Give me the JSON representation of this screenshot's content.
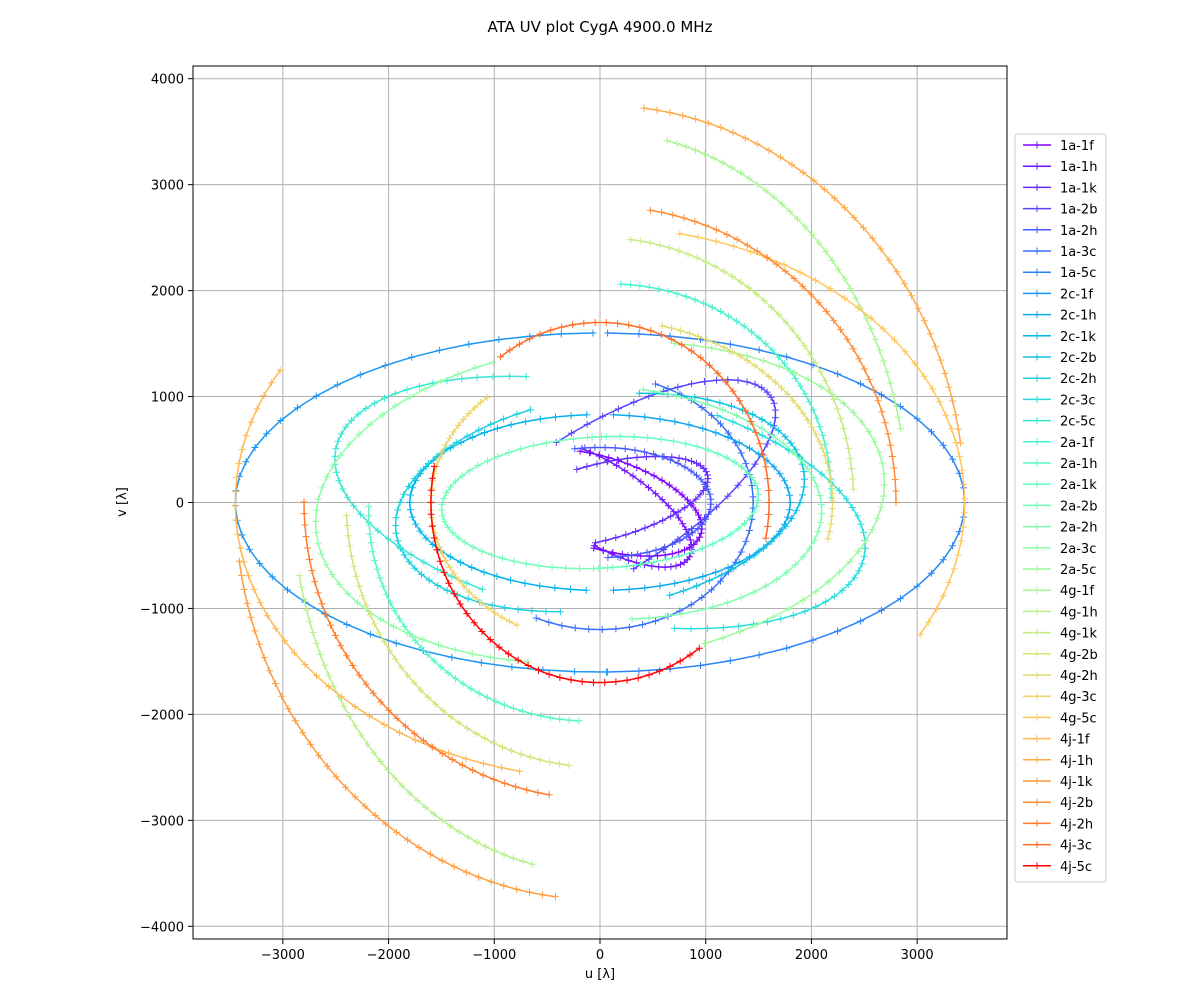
{
  "chart_data": {
    "type": "line",
    "title": "ATA UV plot CygA 4900.0 MHz",
    "xlabel": "u [λ]",
    "ylabel": "v [λ]",
    "xlim": [
      -3850,
      3850
    ],
    "ylim": [
      -4120,
      4120
    ],
    "xticks": [
      -3000,
      -2000,
      -1000,
      0,
      1000,
      2000,
      3000
    ],
    "yticks": [
      -4000,
      -3000,
      -2000,
      -1000,
      0,
      1000,
      2000,
      3000,
      4000
    ],
    "xtick_labels": [
      "−3000",
      "−2000",
      "−1000",
      "0",
      "1000",
      "2000",
      "3000"
    ],
    "ytick_labels": [
      "−4000",
      "−3000",
      "−2000",
      "−1000",
      "0",
      "1000",
      "2000",
      "3000",
      "4000"
    ],
    "grid": true,
    "legend_position": "right",
    "marker": "+",
    "series": [
      {
        "name": "1a-1f",
        "color": "#8000ff",
        "a": 1000,
        "b": 430,
        "phi": -0.3,
        "t0": -1.5,
        "t1": 1.9,
        "x0": 0,
        "y0": 0
      },
      {
        "name": "1a-1h",
        "color": "#7216ff",
        "a": 990,
        "b": 380,
        "phi": -0.55,
        "t0": -1.4,
        "t1": 2.0,
        "x0": 0,
        "y0": 0
      },
      {
        "name": "1a-1k",
        "color": "#632dff",
        "a": 1050,
        "b": 360,
        "phi": 0.25,
        "t0": -1.7,
        "t1": 1.7,
        "x0": 0,
        "y0": 0
      },
      {
        "name": "1a-2b",
        "color": "#5543fe",
        "a": 1900,
        "b": 700,
        "phi": 0.55,
        "t0": -1.6,
        "t1": 1.6,
        "x0": 0,
        "y0": 0
      },
      {
        "name": "1a-2h",
        "color": "#4759fc",
        "a": 1050,
        "b": 520,
        "phi": 0.0,
        "t0": -1.5,
        "t1": 1.8,
        "x0": 0,
        "y0": 0
      },
      {
        "name": "1a-3c",
        "color": "#396ffa",
        "a": 1450,
        "b": 1200,
        "phi": 0.0,
        "t0": -2.0,
        "t1": 1.2,
        "x0": 0,
        "y0": 0
      },
      {
        "name": "1a-5c",
        "color": "#2a84f7",
        "a": 3450,
        "b": 1600,
        "phi": 0.0,
        "t0": -1.55,
        "t1": 1.55,
        "x0": 0,
        "y0": 0
      },
      {
        "name": "2c-1f",
        "color": "#1c96f3",
        "a": 3450,
        "b": 1600,
        "phi": 0.0,
        "t0": 1.59,
        "t1": 4.73,
        "x0": 0,
        "y0": 0
      },
      {
        "name": "2c-1h",
        "color": "#0ea8ef",
        "a": 1800,
        "b": 830,
        "phi": 0.0,
        "t0": -1.5,
        "t1": 1.5,
        "x0": 0,
        "y0": 0
      },
      {
        "name": "2c-1k",
        "color": "#00b5eb",
        "a": 1800,
        "b": 830,
        "phi": 0.0,
        "t0": 1.64,
        "t1": 4.64,
        "x0": 0,
        "y0": 0
      },
      {
        "name": "2c-2b",
        "color": "#0dc1e5",
        "a": 1950,
        "b": 1000,
        "phi": 0.15,
        "t0": -1.3,
        "t1": 1.3,
        "x0": 0,
        "y0": 0
      },
      {
        "name": "2c-2h",
        "color": "#1bcee0",
        "a": 1950,
        "b": 1000,
        "phi": 0.15,
        "t0": 1.84,
        "t1": 4.44,
        "x0": 0,
        "y0": 0
      },
      {
        "name": "2c-3c",
        "color": "#2adddd",
        "a": 2550,
        "b": 1100,
        "phi": -0.2,
        "t0": -1.2,
        "t1": 1.2,
        "x0": 0,
        "y0": 0
      },
      {
        "name": "2c-5c",
        "color": "#3ae7d5",
        "a": 2550,
        "b": 1100,
        "phi": -0.2,
        "t0": 1.94,
        "t1": 4.34,
        "x0": 0,
        "y0": 0
      },
      {
        "name": "2a-1f",
        "color": "#48f2ce",
        "a": 2200,
        "b": 2050,
        "phi": 0.3,
        "t0": -0.3,
        "t1": 1.2,
        "x0": 0,
        "y0": 0
      },
      {
        "name": "2a-1h",
        "color": "#56f8c6",
        "a": 2200,
        "b": 2050,
        "phi": 0.3,
        "t0": 2.84,
        "t1": 4.34,
        "x0": 0,
        "y0": 0
      },
      {
        "name": "2a-1k",
        "color": "#64fdbf",
        "a": 1500,
        "b": 620,
        "phi": 0.05,
        "t0": -1.6,
        "t1": 1.6,
        "x0": 0,
        "y0": 0
      },
      {
        "name": "2a-2b",
        "color": "#72feb7",
        "a": 1500,
        "b": 620,
        "phi": 0.05,
        "t0": 1.54,
        "t1": 4.74,
        "x0": 0,
        "y0": 0
      },
      {
        "name": "2a-2h",
        "color": "#80ffb0",
        "a": 2100,
        "b": 1100,
        "phi": -0.05,
        "t0": -1.4,
        "t1": 1.4,
        "x0": 0,
        "y0": 0
      },
      {
        "name": "2a-3c",
        "color": "#8efea7",
        "a": 2700,
        "b": 1500,
        "phi": 0.1,
        "t0": 1.9,
        "t1": 4.4,
        "x0": 0,
        "y0": 0
      },
      {
        "name": "2a-5c",
        "color": "#9cfa9d",
        "a": 2700,
        "b": 1500,
        "phi": 0.1,
        "t0": -1.25,
        "t1": 1.25,
        "x0": 0,
        "y0": 0
      },
      {
        "name": "4g-1f",
        "color": "#aaf695",
        "a": 2900,
        "b": 3500,
        "phi": 0.0,
        "t0": 0.2,
        "t1": 1.35,
        "x0": 0,
        "y0": 0
      },
      {
        "name": "4g-1h",
        "color": "#b8f08c",
        "a": 2900,
        "b": 3500,
        "phi": 0.0,
        "t0": 3.34,
        "t1": 4.49,
        "x0": 0,
        "y0": 0
      },
      {
        "name": "4g-1k",
        "color": "#c6eb83",
        "a": 2400,
        "b": 2500,
        "phi": 0.0,
        "t0": 0.05,
        "t1": 1.45,
        "x0": 0,
        "y0": 0
      },
      {
        "name": "4g-2b",
        "color": "#d4e479",
        "a": 2400,
        "b": 2500,
        "phi": 0.0,
        "t0": 3.19,
        "t1": 4.59,
        "x0": 0,
        "y0": 0
      },
      {
        "name": "4g-2h",
        "color": "#e2dc6f",
        "a": 2200,
        "b": 1730,
        "phi": 0.0,
        "t0": -0.2,
        "t1": 1.3,
        "x0": 0,
        "y0": 0
      },
      {
        "name": "4g-3c",
        "color": "#f0d466",
        "a": 1600,
        "b": 1330,
        "phi": 0.0,
        "t0": 2.3,
        "t1": 4.2,
        "x0": 0,
        "y0": 0
      },
      {
        "name": "4g-5c",
        "color": "#ffc65b",
        "a": 3450,
        "b": 2600,
        "phi": 0.0,
        "t0": -0.5,
        "t1": 1.35,
        "x0": 0,
        "y0": 0
      },
      {
        "name": "4j-1f",
        "color": "#ffb852",
        "a": 3450,
        "b": 2600,
        "phi": 0.0,
        "t0": 2.64,
        "t1": 4.49,
        "x0": 0,
        "y0": 0
      },
      {
        "name": "4j-1h",
        "color": "#ffaa48",
        "a": 3450,
        "b": 3750,
        "phi": 0.0,
        "t0": 0.15,
        "t1": 1.45,
        "x0": 0,
        "y0": 0
      },
      {
        "name": "4j-1k",
        "color": "#ff9c3f",
        "a": 3450,
        "b": 3750,
        "phi": 0.0,
        "t0": 3.29,
        "t1": 4.59,
        "x0": 0,
        "y0": 0
      },
      {
        "name": "4j-2b",
        "color": "#ff8d36",
        "a": 2800,
        "b": 2800,
        "phi": 0.0,
        "t0": 0.0,
        "t1": 1.4,
        "x0": 0,
        "y0": 0
      },
      {
        "name": "4j-2h",
        "color": "#ff7d2d",
        "a": 2800,
        "b": 2800,
        "phi": 0.0,
        "t0": 3.14,
        "t1": 4.54,
        "x0": 0,
        "y0": 0
      },
      {
        "name": "4j-3c",
        "color": "#ff6c24",
        "a": 1600,
        "b": 1700,
        "phi": 0.0,
        "t0": -0.2,
        "t1": 2.2,
        "x0": 0,
        "y0": 0
      },
      {
        "name": "4j-5c",
        "color": "#ff0000",
        "a": 1600,
        "b": 1700,
        "phi": 0.0,
        "t0": 2.94,
        "t1": 5.34,
        "x0": 0,
        "y0": 0
      }
    ]
  }
}
